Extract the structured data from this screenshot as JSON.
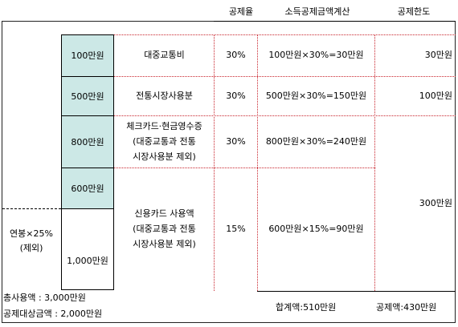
{
  "headers": {
    "rate": "공제율",
    "calc": "소득공제금액계산",
    "limit": "공제한도"
  },
  "bars": [
    {
      "label": "100만원"
    },
    {
      "label": "500만원"
    },
    {
      "label": "800만원"
    },
    {
      "label": "600만원"
    },
    {
      "label": "1,000만원"
    }
  ],
  "rows": [
    {
      "category": "대중교통비",
      "rate": "30%",
      "calc": "100만원×30%=30만원",
      "limit": "30만원"
    },
    {
      "category": "전통시장사용분",
      "rate": "30%",
      "calc": "500만원×30%=150만원",
      "limit": "100만원"
    },
    {
      "category_lines": [
        "체크카드·현금영수증",
        "(대중교통과 전통",
        "시장사용분 제외)"
      ],
      "rate": "30%",
      "calc": "800만원×30%=240만원"
    },
    {
      "category_lines": [
        "신용카드 사용액",
        "(대중교통과 전통",
        "시장사용분 제외)"
      ],
      "rate": "15%",
      "calc": "600만원×15%=90만원"
    }
  ],
  "shared_limit": "300만원",
  "side_note": {
    "line1": "연봉×25%",
    "line2": "(제외)"
  },
  "footer": {
    "total_usage": "총사용액  : 3,000만원",
    "deductible_base": "공제대상금액 : 2,000만원",
    "sum": "합계액:510만원",
    "deduction": "공제액:430만원"
  }
}
